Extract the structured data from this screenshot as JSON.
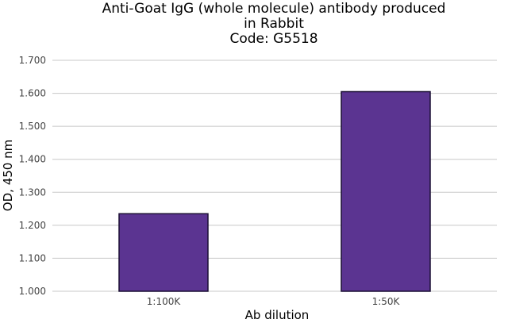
{
  "chart_data": {
    "type": "bar",
    "title": [
      "Anti-Goat IgG (whole molecule) antibody produced",
      "in Rabbit",
      "Code: G5518"
    ],
    "xlabel": "Ab dilution",
    "ylabel": "OD, 450 nm",
    "categories": [
      "1:100K",
      "1:50K"
    ],
    "values": [
      1.235,
      1.605
    ],
    "ylim": [
      1.0,
      1.7
    ],
    "yticks": [
      "1.000",
      "1.100",
      "1.200",
      "1.300",
      "1.400",
      "1.500",
      "1.600",
      "1.700"
    ],
    "grid": true,
    "legend": false,
    "bar_color": "#5b3491",
    "bar_edge_color": "#1a0f33",
    "grid_color": "#c8c8c8"
  }
}
